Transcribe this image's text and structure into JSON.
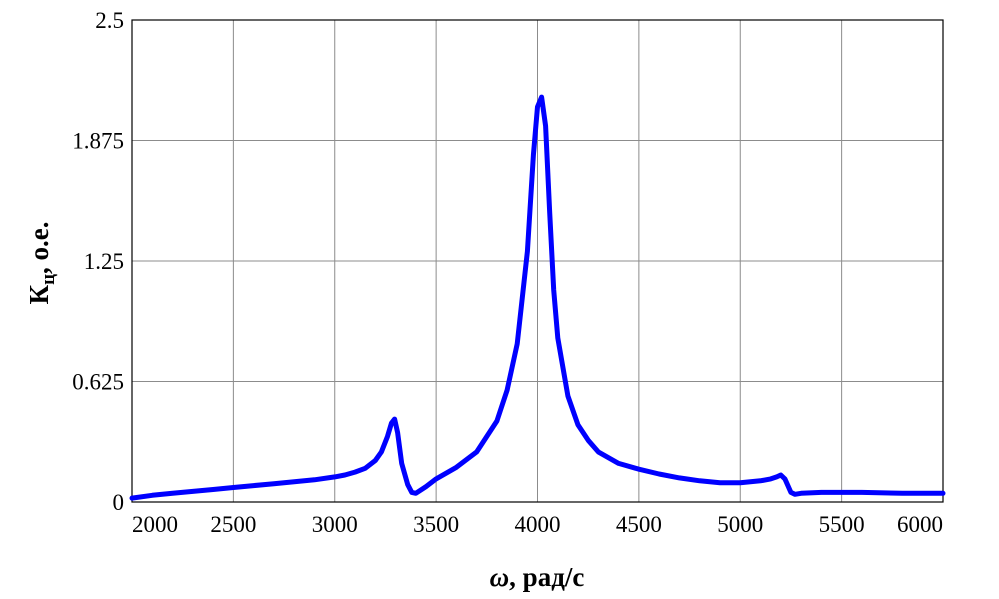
{
  "chart_data": {
    "type": "line",
    "xlabel": {
      "symbol": "ω",
      "rest": ", рад/с"
    },
    "ylabel": {
      "main": "К",
      "sub": "ц",
      "rest": ", о.е."
    },
    "xlim": [
      2000,
      6000
    ],
    "ylim": [
      0,
      2.5
    ],
    "x_ticks": [
      "2000",
      "2500",
      "3000",
      "3500",
      "4000",
      "4500",
      "5000",
      "5500",
      "6000"
    ],
    "y_ticks": [
      "0",
      "0.625",
      "1.25",
      "1.875",
      "2.5"
    ],
    "grid": true,
    "color": "#0000ff",
    "series": [
      {
        "x": [
          2000,
          2100,
          2200,
          2300,
          2400,
          2500,
          2600,
          2700,
          2800,
          2900,
          3000,
          3050,
          3100,
          3150,
          3200,
          3230,
          3260,
          3280,
          3295,
          3310,
          3330,
          3360,
          3380,
          3400,
          3450,
          3500,
          3600,
          3700,
          3800,
          3850,
          3900,
          3950,
          3980,
          4000,
          4020,
          4040,
          4060,
          4080,
          4100,
          4150,
          4200,
          4250,
          4300,
          4400,
          4500,
          4600,
          4700,
          4800,
          4900,
          5000,
          5100,
          5150,
          5180,
          5200,
          5220,
          5250,
          5270,
          5300,
          5400,
          5600,
          5800,
          6000
        ],
        "y": [
          0.02,
          0.035,
          0.045,
          0.055,
          0.065,
          0.075,
          0.085,
          0.095,
          0.105,
          0.115,
          0.13,
          0.14,
          0.155,
          0.175,
          0.215,
          0.26,
          0.34,
          0.41,
          0.43,
          0.36,
          0.2,
          0.09,
          0.05,
          0.045,
          0.08,
          0.12,
          0.18,
          0.26,
          0.42,
          0.58,
          0.82,
          1.3,
          1.8,
          2.05,
          2.1,
          1.95,
          1.5,
          1.1,
          0.85,
          0.55,
          0.4,
          0.32,
          0.26,
          0.2,
          0.17,
          0.145,
          0.125,
          0.11,
          0.1,
          0.1,
          0.11,
          0.12,
          0.13,
          0.14,
          0.12,
          0.05,
          0.04,
          0.045,
          0.05,
          0.05,
          0.045,
          0.045
        ]
      }
    ]
  }
}
